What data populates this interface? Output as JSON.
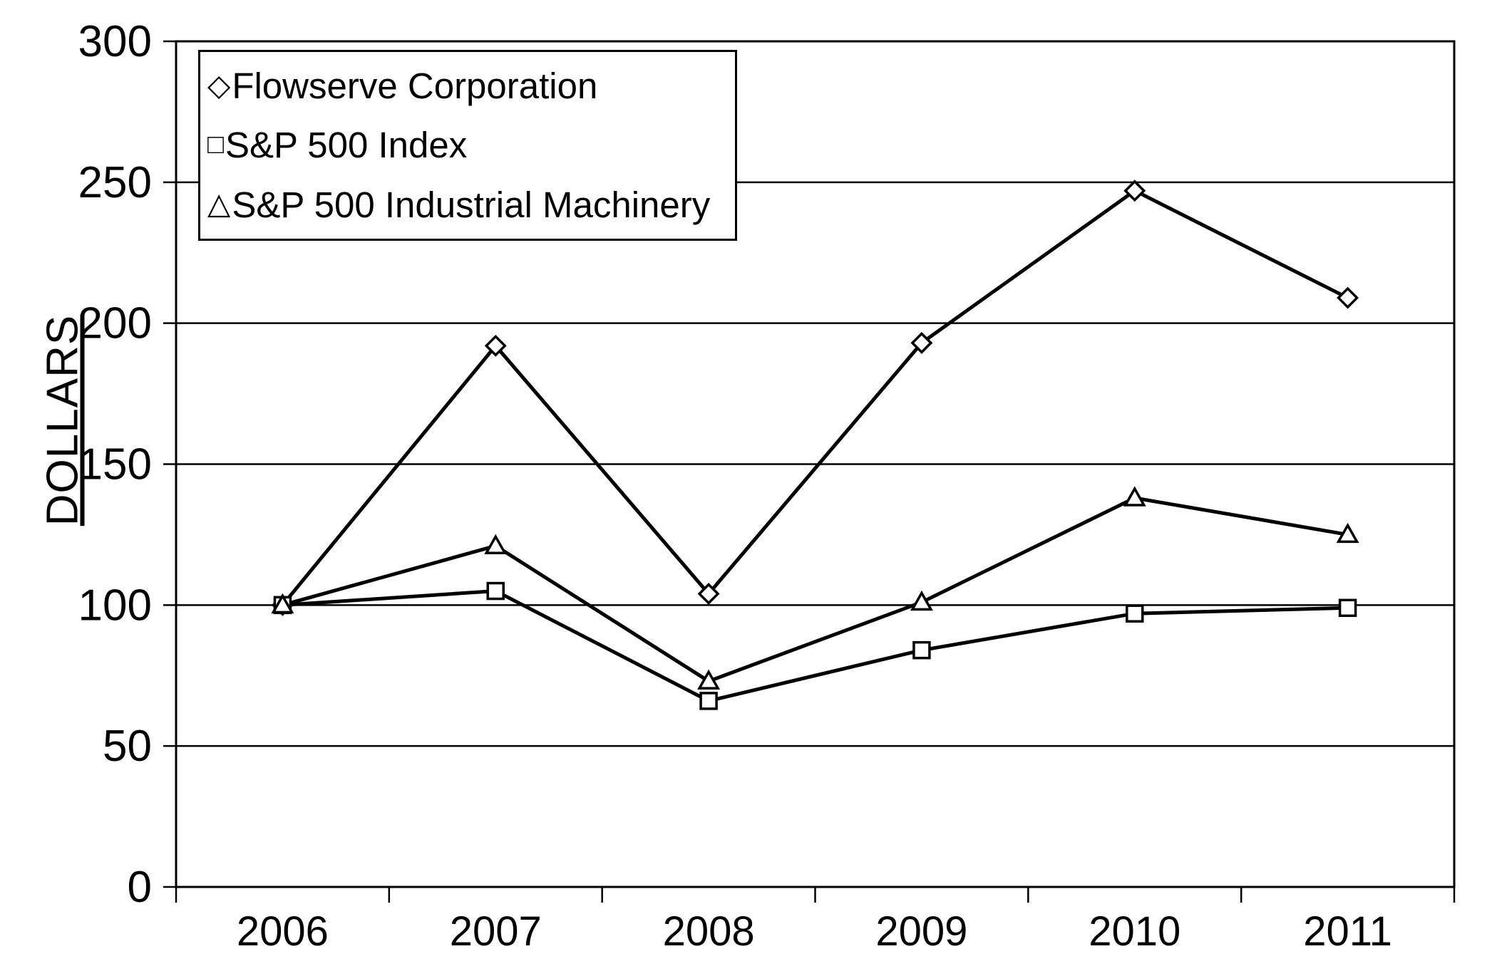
{
  "chart_data": {
    "type": "line",
    "title": "",
    "xlabel": "",
    "ylabel": "DOLLARS",
    "categories": [
      "2006",
      "2007",
      "2008",
      "2009",
      "2010",
      "2011"
    ],
    "ylim": [
      0,
      300
    ],
    "y_ticks": [
      0,
      50,
      100,
      150,
      200,
      250,
      300
    ],
    "grid": "horizontal",
    "legend_position": "top-left-inside",
    "background_color": "#ffffff",
    "line_color": "#000000",
    "series": [
      {
        "name": "Flowserve Corporation",
        "marker": "diamond",
        "color": "#000000",
        "values": [
          100,
          192,
          104,
          193,
          247,
          209
        ]
      },
      {
        "name": "S&P 500 Index",
        "marker": "square",
        "color": "#000000",
        "values": [
          100,
          105,
          66,
          84,
          97,
          99
        ]
      },
      {
        "name": "S&P 500 Industrial Machinery",
        "marker": "triangle",
        "color": "#000000",
        "values": [
          100,
          121,
          73,
          101,
          138,
          125
        ]
      }
    ],
    "legend_glyphs": {
      "diamond": "◇",
      "square": "□",
      "triangle": "△"
    }
  }
}
